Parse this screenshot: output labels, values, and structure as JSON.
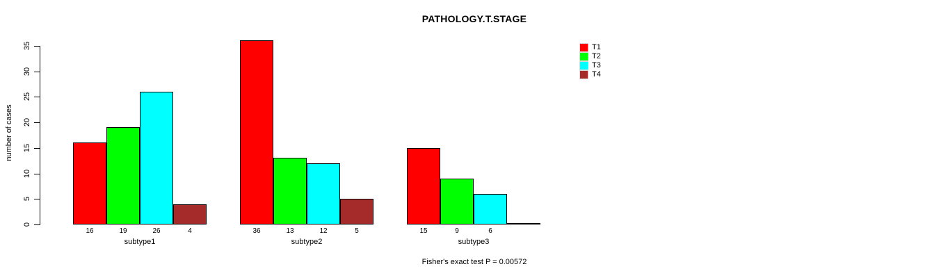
{
  "figure": {
    "background": "#ffffff",
    "text_color": "#000000",
    "bar_border_color": "#000000"
  },
  "chart_data": {
    "type": "bar",
    "title": "PATHOLOGY.T.STAGE",
    "ylabel": "number of cases",
    "xlabel": "",
    "ylim": [
      0,
      36
    ],
    "yticks": [
      0,
      5,
      10,
      15,
      20,
      25,
      30,
      35
    ],
    "grid": false,
    "legend_position": "upper-right-inside",
    "categories": [
      "subtype1",
      "subtype2",
      "subtype3"
    ],
    "series": [
      {
        "name": "T1",
        "color": "#ff0000",
        "values": [
          16,
          36,
          15
        ]
      },
      {
        "name": "T2",
        "color": "#00ff00",
        "values": [
          19,
          13,
          9
        ]
      },
      {
        "name": "T3",
        "color": "#00ffff",
        "values": [
          26,
          12,
          6
        ]
      },
      {
        "name": "T4",
        "color": "#a52a2a",
        "values": [
          4,
          5,
          0
        ]
      }
    ],
    "value_labels_shown": true,
    "legend_entries": [
      "T1",
      "T2",
      "T3",
      "T4"
    ],
    "annotation": "Fisher's exact test P = 0.00572"
  }
}
